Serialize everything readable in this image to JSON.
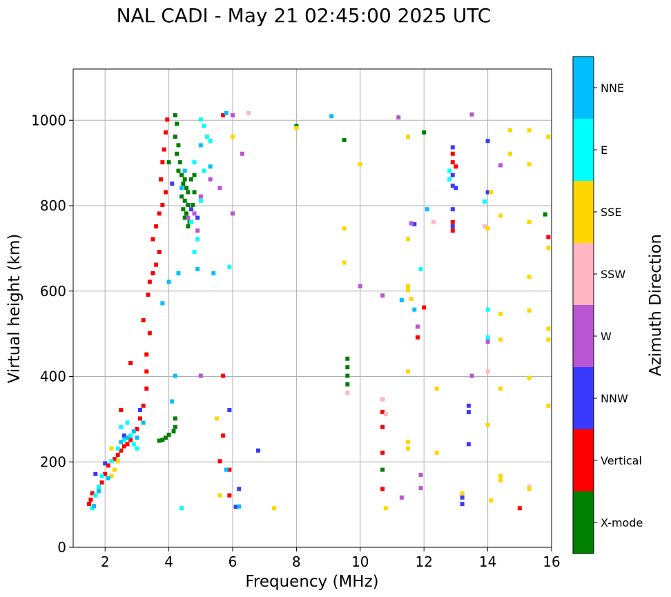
{
  "chart_data": {
    "type": "scatter",
    "title": "NAL CADI - May 21 02:45:00 2025 UTC",
    "xlabel": "Frequency (MHz)",
    "ylabel": "Virtual height (km)",
    "xlim": [
      1,
      16
    ],
    "ylim": [
      0,
      1120
    ],
    "xticks": [
      2,
      4,
      6,
      8,
      10,
      12,
      14,
      16
    ],
    "yticks": [
      0,
      200,
      400,
      600,
      800,
      1000
    ],
    "grid": true,
    "colorbar": {
      "label": "Azimuth Direction",
      "categories": [
        {
          "name": "X-mode",
          "color": "#008000"
        },
        {
          "name": "Vertical",
          "color": "#ff0000"
        },
        {
          "name": "NNW",
          "color": "#3a3aff"
        },
        {
          "name": "W",
          "color": "#ba55d3"
        },
        {
          "name": "SSW",
          "color": "#ffb6c1"
        },
        {
          "name": "SSE",
          "color": "#ffd700"
        },
        {
          "name": "E",
          "color": "#00ffff"
        },
        {
          "name": "NNE",
          "color": "#00bfff"
        }
      ]
    },
    "series": [
      {
        "name": "X-mode",
        "points": [
          [
            4.2,
            1010
          ],
          [
            4.25,
            990
          ],
          [
            4.2,
            960
          ],
          [
            4.3,
            940
          ],
          [
            4.25,
            920
          ],
          [
            4.35,
            900
          ],
          [
            4.3,
            880
          ],
          [
            4.4,
            870
          ],
          [
            4.5,
            860
          ],
          [
            4.45,
            850
          ],
          [
            4.55,
            840
          ],
          [
            4.6,
            830
          ],
          [
            4.4,
            820
          ],
          [
            4.5,
            810
          ],
          [
            4.6,
            800
          ],
          [
            4.45,
            790
          ],
          [
            4.55,
            780
          ],
          [
            4.5,
            770
          ],
          [
            4.65,
            760
          ],
          [
            4.6,
            750
          ],
          [
            4.7,
            860
          ],
          [
            4.8,
            830
          ],
          [
            4.75,
            800
          ],
          [
            4.2,
            280
          ],
          [
            4.2,
            300
          ],
          [
            4.15,
            270
          ],
          [
            4.0,
            262
          ],
          [
            3.9,
            255
          ],
          [
            3.8,
            250
          ],
          [
            3.7,
            248
          ],
          [
            9.6,
            380
          ],
          [
            9.6,
            400
          ],
          [
            9.6,
            420
          ],
          [
            9.6,
            440
          ],
          [
            10.7,
            180
          ],
          [
            15.8,
            778
          ],
          [
            8.0,
            985
          ],
          [
            12.0,
            970
          ],
          [
            9.5,
            952
          ],
          [
            4.0,
            900
          ],
          [
            4.8,
            870
          ]
        ]
      },
      {
        "name": "Vertical",
        "points": [
          [
            1.5,
            100
          ],
          [
            1.55,
            110
          ],
          [
            1.6,
            125
          ],
          [
            1.9,
            150
          ],
          [
            2.0,
            170
          ],
          [
            2.1,
            190
          ],
          [
            2.3,
            205
          ],
          [
            2.4,
            215
          ],
          [
            2.5,
            225
          ],
          [
            2.6,
            235
          ],
          [
            2.7,
            240
          ],
          [
            2.8,
            250
          ],
          [
            3.0,
            275
          ],
          [
            3.1,
            300
          ],
          [
            3.2,
            330
          ],
          [
            3.3,
            370
          ],
          [
            3.3,
            410
          ],
          [
            3.3,
            450
          ],
          [
            3.4,
            500
          ],
          [
            3.2,
            530
          ],
          [
            3.35,
            590
          ],
          [
            3.4,
            620
          ],
          [
            3.5,
            640
          ],
          [
            3.6,
            660
          ],
          [
            3.7,
            690
          ],
          [
            3.5,
            720
          ],
          [
            3.6,
            750
          ],
          [
            3.7,
            780
          ],
          [
            3.8,
            800
          ],
          [
            3.9,
            830
          ],
          [
            3.75,
            860
          ],
          [
            3.8,
            900
          ],
          [
            3.85,
            930
          ],
          [
            3.9,
            970
          ],
          [
            3.95,
            1000
          ],
          [
            2.8,
            430
          ],
          [
            2.5,
            320
          ],
          [
            5.7,
            260
          ],
          [
            5.7,
            400
          ],
          [
            5.6,
            200
          ],
          [
            5.9,
            180
          ],
          [
            5.9,
            120
          ],
          [
            5.7,
            1010
          ],
          [
            10.7,
            345
          ],
          [
            10.7,
            315
          ],
          [
            10.7,
            280
          ],
          [
            10.7,
            220
          ],
          [
            10.7,
            135
          ],
          [
            12.9,
            740
          ],
          [
            12.9,
            760
          ],
          [
            12.9,
            900
          ],
          [
            12.9,
            920
          ],
          [
            13.0,
            890
          ],
          [
            15.0,
            90
          ],
          [
            15.9,
            725
          ],
          [
            12.0,
            560
          ],
          [
            11.8,
            490
          ]
        ]
      },
      {
        "name": "NNW",
        "points": [
          [
            1.7,
            170
          ],
          [
            2.0,
            195
          ],
          [
            2.6,
            260
          ],
          [
            3.1,
            320
          ],
          [
            5.9,
            320
          ],
          [
            6.2,
            135
          ],
          [
            6.1,
            93
          ],
          [
            12.9,
            935
          ],
          [
            12.9,
            870
          ],
          [
            12.9,
            845
          ],
          [
            13.0,
            840
          ],
          [
            12.9,
            790
          ],
          [
            12.9,
            750
          ],
          [
            13.2,
            100
          ],
          [
            13.2,
            115
          ],
          [
            13.4,
            315
          ],
          [
            13.4,
            240
          ],
          [
            13.4,
            330
          ],
          [
            11.7,
            755
          ],
          [
            14.0,
            950
          ],
          [
            14.0,
            830
          ],
          [
            6.8,
            225
          ],
          [
            4.1,
            850
          ],
          [
            4.7,
            790
          ],
          [
            4.9,
            770
          ]
        ]
      },
      {
        "name": "W",
        "points": [
          [
            4.6,
            770
          ],
          [
            4.8,
            780
          ],
          [
            5.0,
            820
          ],
          [
            4.9,
            740
          ],
          [
            5.3,
            860
          ],
          [
            5.6,
            840
          ],
          [
            6.0,
            1010
          ],
          [
            6.3,
            920
          ],
          [
            11.2,
            1005
          ],
          [
            13.5,
            1012
          ],
          [
            10.0,
            610
          ],
          [
            10.7,
            588
          ],
          [
            11.6,
            757
          ],
          [
            11.9,
            137
          ],
          [
            11.9,
            168
          ],
          [
            13.5,
            400
          ],
          [
            14.4,
            893
          ],
          [
            14.0,
            480
          ],
          [
            5.0,
            400
          ],
          [
            6.0,
            780
          ],
          [
            11.3,
            115
          ],
          [
            11.8,
            515
          ]
        ]
      },
      {
        "name": "SSW",
        "points": [
          [
            10.7,
            345
          ],
          [
            10.8,
            310
          ],
          [
            12.3,
            760
          ],
          [
            14.0,
            410
          ],
          [
            15.3,
            140
          ],
          [
            13.9,
            750
          ],
          [
            6.5,
            1015
          ],
          [
            9.6,
            360
          ]
        ]
      },
      {
        "name": "SSE",
        "points": [
          [
            2.2,
            165
          ],
          [
            2.3,
            180
          ],
          [
            2.4,
            200
          ],
          [
            2.2,
            230
          ],
          [
            8.0,
            980
          ],
          [
            9.5,
            745
          ],
          [
            9.5,
            665
          ],
          [
            10.0,
            895
          ],
          [
            11.5,
            960
          ],
          [
            11.5,
            720
          ],
          [
            11.5,
            610
          ],
          [
            11.5,
            600
          ],
          [
            11.6,
            580
          ],
          [
            11.5,
            410
          ],
          [
            11.5,
            230
          ],
          [
            11.5,
            245
          ],
          [
            12.4,
            220
          ],
          [
            12.4,
            370
          ],
          [
            13.2,
            125
          ],
          [
            14.0,
            745
          ],
          [
            14.1,
            830
          ],
          [
            14.4,
            775
          ],
          [
            14.4,
            545
          ],
          [
            14.4,
            485
          ],
          [
            14.4,
            370
          ],
          [
            14.4,
            165
          ],
          [
            14.4,
            155
          ],
          [
            14.1,
            108
          ],
          [
            14.7,
            975
          ],
          [
            14.7,
            920
          ],
          [
            15.3,
            975
          ],
          [
            15.3,
            895
          ],
          [
            15.3,
            760
          ],
          [
            15.3,
            632
          ],
          [
            15.3,
            553
          ],
          [
            15.3,
            395
          ],
          [
            15.3,
            135
          ],
          [
            15.9,
            960
          ],
          [
            15.9,
            700
          ],
          [
            15.9,
            510
          ],
          [
            15.9,
            485
          ],
          [
            15.9,
            330
          ],
          [
            14.0,
            285
          ],
          [
            10.8,
            90
          ],
          [
            7.3,
            90
          ],
          [
            5.6,
            120
          ],
          [
            6.0,
            960
          ],
          [
            5.5,
            300
          ]
        ]
      },
      {
        "name": "E",
        "points": [
          [
            1.6,
            90
          ],
          [
            1.7,
            120
          ],
          [
            1.8,
            140
          ],
          [
            1.9,
            165
          ],
          [
            2.2,
            200
          ],
          [
            2.4,
            230
          ],
          [
            2.6,
            250
          ],
          [
            2.8,
            260
          ],
          [
            2.9,
            240
          ],
          [
            3.0,
            230
          ],
          [
            2.5,
            280
          ],
          [
            2.7,
            290
          ],
          [
            5.0,
            1000
          ],
          [
            5.1,
            985
          ],
          [
            5.2,
            960
          ],
          [
            5.3,
            950
          ],
          [
            4.8,
            900
          ],
          [
            5.1,
            880
          ],
          [
            5.0,
            810
          ],
          [
            4.7,
            760
          ],
          [
            4.9,
            720
          ],
          [
            4.8,
            690
          ],
          [
            5.9,
            655
          ],
          [
            14.0,
            555
          ],
          [
            14.0,
            490
          ],
          [
            11.9,
            650
          ],
          [
            13.9,
            808
          ],
          [
            4.4,
            90
          ],
          [
            12.8,
            880
          ],
          [
            12.8,
            860
          ]
        ]
      },
      {
        "name": "NNE",
        "points": [
          [
            1.65,
            95
          ],
          [
            1.8,
            130
          ],
          [
            2.1,
            160
          ],
          [
            2.5,
            245
          ],
          [
            2.7,
            255
          ],
          [
            2.9,
            270
          ],
          [
            3.0,
            255
          ],
          [
            3.2,
            290
          ],
          [
            3.8,
            570
          ],
          [
            4.0,
            620
          ],
          [
            4.2,
            400
          ],
          [
            4.1,
            340
          ],
          [
            4.4,
            840
          ],
          [
            4.5,
            880
          ],
          [
            5.0,
            940
          ],
          [
            5.3,
            890
          ],
          [
            4.9,
            650
          ],
          [
            5.8,
            1015
          ],
          [
            9.1,
            1008
          ],
          [
            11.3,
            577
          ],
          [
            11.7,
            555
          ],
          [
            12.1,
            790
          ],
          [
            4.3,
            640
          ],
          [
            5.4,
            640
          ],
          [
            6.2,
            94
          ],
          [
            5.8,
            180
          ]
        ]
      }
    ]
  }
}
